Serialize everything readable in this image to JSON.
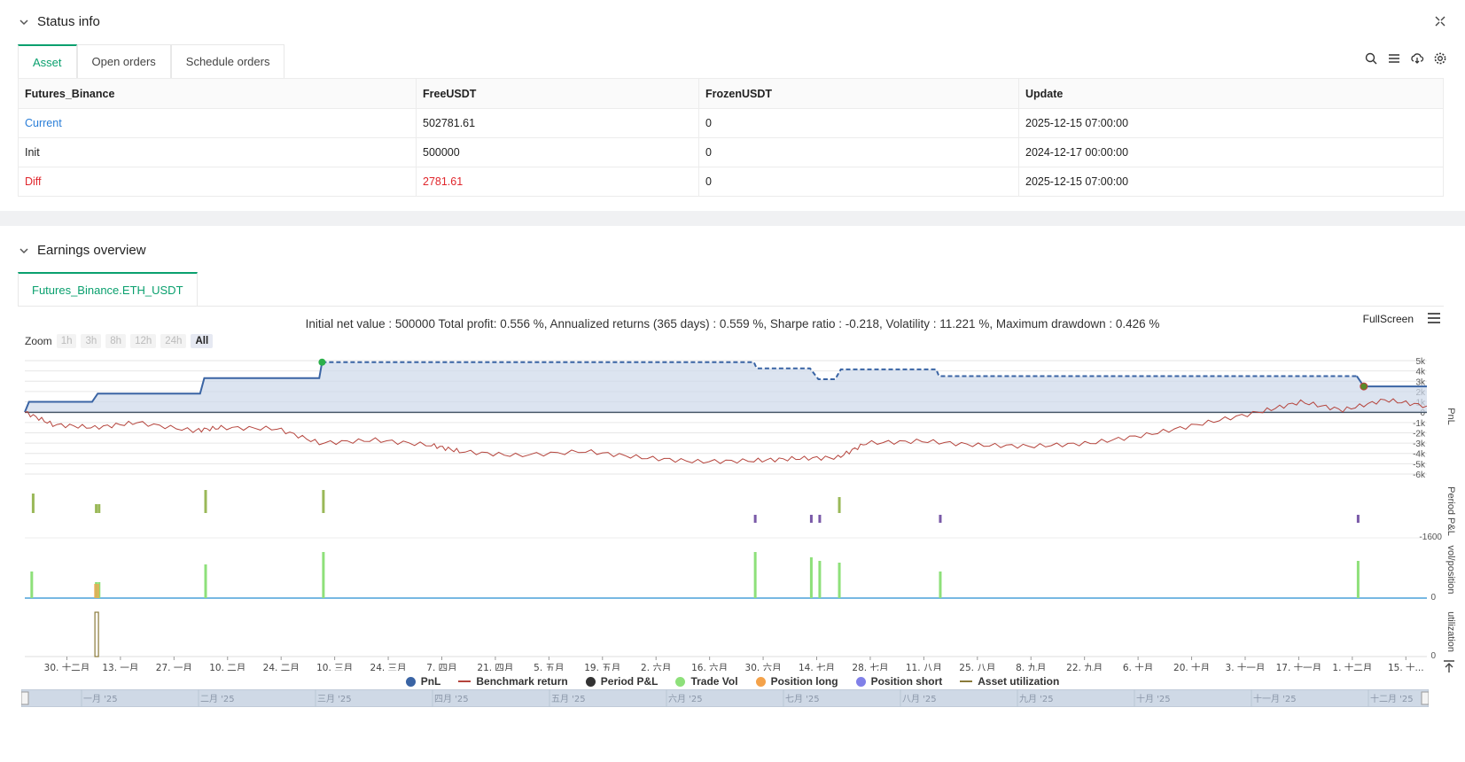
{
  "status": {
    "title": "Status info",
    "tabs": [
      "Asset",
      "Open orders",
      "Schedule orders"
    ],
    "table": {
      "headers": [
        "Futures_Binance",
        "FreeUSDT",
        "FrozenUSDT",
        "Update"
      ],
      "rows": [
        [
          "Current",
          "502781.61",
          "0",
          "2025-12-15 07:00:00"
        ],
        [
          "Init",
          "500000",
          "0",
          "2024-12-17 00:00:00"
        ],
        [
          "Diff",
          "2781.61",
          "0",
          "2025-12-15 07:00:00"
        ]
      ]
    }
  },
  "earnings": {
    "title": "Earnings overview",
    "tab": "Futures_Binance.ETH_USDT",
    "summary": "Initial net value : 500000 Total profit: 0.556 %, Annualized returns (365 days) : 0.559 %, Sharpe ratio : -0.218, Volatility : 11.221 %, Maximum drawdown : 0.426 %",
    "fullscreen": "FullScreen",
    "zoom_label": "Zoom",
    "zoom_buttons": [
      "1h",
      "3h",
      "8h",
      "12h",
      "24h",
      "All"
    ],
    "legend": [
      "PnL",
      "Benchmark return",
      "Period P&L",
      "Trade Vol",
      "Position long",
      "Position short",
      "Asset utilization"
    ]
  },
  "chart_data": {
    "type": "line",
    "x_tick_labels": [
      "30. 十二月",
      "13. 一月",
      "27. 一月",
      "10. 二月",
      "24. 二月",
      "10. 三月",
      "24. 三月",
      "7. 四月",
      "21. 四月",
      "5. 五月",
      "19. 五月",
      "2. 六月",
      "16. 六月",
      "30. 六月",
      "14. 七月",
      "28. 七月",
      "11. 八月",
      "25. 八月",
      "8. 九月",
      "22. 九月",
      "6. 十月",
      "20. 十月",
      "3. 十一月",
      "17. 十一月",
      "1. 十二月",
      "15. 十..."
    ],
    "pnl_y_ticks": [
      "5k",
      "4k",
      "3k",
      "2k",
      "1k",
      "0",
      "-1k",
      "-2k",
      "-3k",
      "-4k",
      "-5k",
      "-6k"
    ],
    "pnl_ylim": [
      -6000,
      5000
    ],
    "period_pnl_tick": "-1600",
    "vol_tick": "0",
    "util_tick": "0",
    "axis_titles": [
      "PnL",
      "Period P&L",
      "vol/position",
      "utilization"
    ],
    "navigator_labels": [
      "一月 '25",
      "二月 '25",
      "三月 '25",
      "四月 '25",
      "五月 '25",
      "六月 '25",
      "七月 '25",
      "八月 '25",
      "九月 '25",
      "十月 '25",
      "十一月 '25",
      "十二月 '25"
    ],
    "pnl_series": [
      {
        "x": 0.0,
        "y": 0
      },
      {
        "x": 0.003,
        "y": 1000
      },
      {
        "x": 0.048,
        "y": 1000
      },
      {
        "x": 0.052,
        "y": 1800
      },
      {
        "x": 0.125,
        "y": 1800
      },
      {
        "x": 0.128,
        "y": 3300
      },
      {
        "x": 0.21,
        "y": 3300
      },
      {
        "x": 0.212,
        "y": 4850
      },
      {
        "x": 0.52,
        "y": 4850
      },
      {
        "x": 0.522,
        "y": 4250
      },
      {
        "x": 0.56,
        "y": 4250
      },
      {
        "x": 0.566,
        "y": 3200
      },
      {
        "x": 0.578,
        "y": 3200
      },
      {
        "x": 0.582,
        "y": 4150
      },
      {
        "x": 0.65,
        "y": 4150
      },
      {
        "x": 0.652,
        "y": 3500
      },
      {
        "x": 0.95,
        "y": 3500
      },
      {
        "x": 0.955,
        "y": 2500
      },
      {
        "x": 1.0,
        "y": 2500
      }
    ],
    "benchmark_series": [
      {
        "x": 0.0,
        "y": 0
      },
      {
        "x": 0.02,
        "y": -1200
      },
      {
        "x": 0.05,
        "y": -1500
      },
      {
        "x": 0.08,
        "y": -1000
      },
      {
        "x": 0.12,
        "y": -1800
      },
      {
        "x": 0.14,
        "y": -1500
      },
      {
        "x": 0.18,
        "y": -1600
      },
      {
        "x": 0.21,
        "y": -3000
      },
      {
        "x": 0.25,
        "y": -2700
      },
      {
        "x": 0.29,
        "y": -3200
      },
      {
        "x": 0.31,
        "y": -3800
      },
      {
        "x": 0.35,
        "y": -4200
      },
      {
        "x": 0.4,
        "y": -3800
      },
      {
        "x": 0.44,
        "y": -4400
      },
      {
        "x": 0.48,
        "y": -4800
      },
      {
        "x": 0.52,
        "y": -4700
      },
      {
        "x": 0.55,
        "y": -4500
      },
      {
        "x": 0.58,
        "y": -4400
      },
      {
        "x": 0.6,
        "y": -3000
      },
      {
        "x": 0.64,
        "y": -2800
      },
      {
        "x": 0.68,
        "y": -3200
      },
      {
        "x": 0.72,
        "y": -3300
      },
      {
        "x": 0.76,
        "y": -3000
      },
      {
        "x": 0.8,
        "y": -2200
      },
      {
        "x": 0.84,
        "y": -1100
      },
      {
        "x": 0.88,
        "y": 0
      },
      {
        "x": 0.91,
        "y": 1000
      },
      {
        "x": 0.94,
        "y": 200
      },
      {
        "x": 0.97,
        "y": 1200
      },
      {
        "x": 1.0,
        "y": 600
      }
    ]
  }
}
